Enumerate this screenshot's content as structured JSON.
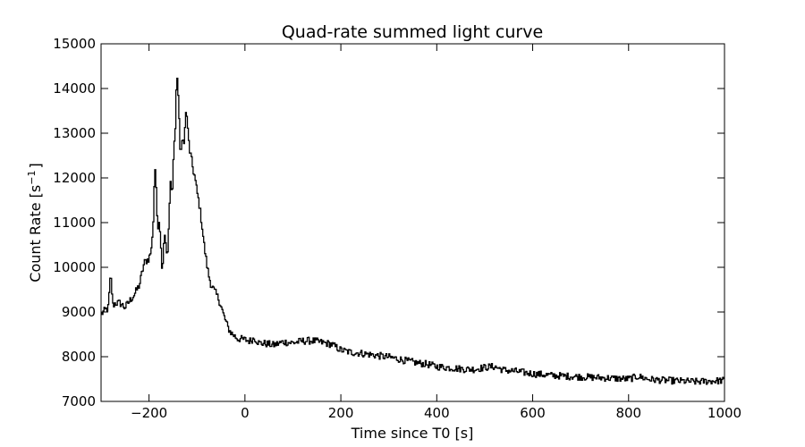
{
  "chart_data": {
    "type": "line",
    "title": "Quad-rate summed light curve",
    "xlabel": "Time since T0 [s]",
    "ylabel_main": "Count Rate [s",
    "ylabel_sup": "−1",
    "ylabel_end": "]",
    "xlim": [
      -300,
      1000
    ],
    "ylim": [
      7000,
      15000
    ],
    "x_ticks": [
      -200,
      0,
      200,
      400,
      600,
      800,
      1000
    ],
    "x_tick_labels": [
      "−200",
      "0",
      "200",
      "400",
      "600",
      "800",
      "1000"
    ],
    "y_ticks": [
      7000,
      8000,
      9000,
      10000,
      11000,
      12000,
      13000,
      14000,
      15000
    ],
    "y_tick_labels": [
      "7000",
      "8000",
      "9000",
      "10000",
      "11000",
      "12000",
      "13000",
      "14000",
      "15000"
    ],
    "grid": false,
    "legend": "none",
    "line_color": "#000000",
    "series": [
      {
        "x": [
          -300,
          -290,
          -285,
          -280,
          -275,
          -270,
          -260,
          -250,
          -240,
          -230,
          -220,
          -210,
          -200,
          -195,
          -190,
          -188,
          -185,
          -182,
          -178,
          -175,
          -172,
          -168,
          -165,
          -162,
          -158,
          -155,
          -152,
          -150,
          -148,
          -145,
          -142,
          -140,
          -138,
          -135,
          -132,
          -130,
          -128,
          -125,
          -122,
          -120,
          -118,
          -115,
          -112,
          -110,
          -108,
          -105,
          -100,
          -95,
          -90,
          -85,
          -80,
          -75,
          -70,
          -65,
          -60,
          -55,
          -50,
          -45,
          -40,
          -35,
          -30,
          -25,
          -20,
          -15,
          -10,
          0,
          10,
          20,
          30,
          40,
          60,
          80,
          100,
          120,
          140,
          160,
          180,
          200,
          220,
          240,
          260,
          280,
          300,
          320,
          340,
          360,
          380,
          400,
          420,
          440,
          460,
          480,
          500,
          520,
          540,
          560,
          580,
          600,
          620,
          640,
          660,
          680,
          700,
          720,
          740,
          760,
          780,
          800,
          820,
          840,
          860,
          880,
          900,
          920,
          940,
          960,
          980,
          1000
        ],
        "y": [
          8950,
          9050,
          9100,
          9850,
          9150,
          9200,
          9200,
          9100,
          9250,
          9400,
          9600,
          10100,
          10200,
          10400,
          11200,
          12450,
          11700,
          10900,
          11100,
          10400,
          9900,
          10800,
          10600,
          10100,
          11100,
          11900,
          11600,
          12100,
          12700,
          13100,
          14350,
          14200,
          13500,
          12700,
          12600,
          12900,
          12750,
          13100,
          13600,
          13200,
          12900,
          12600,
          12450,
          12300,
          12200,
          12050,
          11700,
          11400,
          11000,
          10500,
          10100,
          9800,
          9600,
          9500,
          9400,
          9300,
          9150,
          8950,
          8800,
          8650,
          8550,
          8500,
          8450,
          8400,
          8400,
          8380,
          8350,
          8420,
          8300,
          8300,
          8260,
          8330,
          8310,
          8350,
          8360,
          8320,
          8280,
          8150,
          8100,
          8080,
          8050,
          8020,
          7990,
          7950,
          7900,
          7860,
          7830,
          7780,
          7760,
          7740,
          7720,
          7720,
          7760,
          7780,
          7700,
          7680,
          7650,
          7620,
          7600,
          7580,
          7570,
          7560,
          7550,
          7540,
          7530,
          7520,
          7510,
          7500,
          7560,
          7500,
          7480,
          7470,
          7460,
          7450,
          7440,
          7450,
          7460,
          7470
        ]
      }
    ]
  }
}
